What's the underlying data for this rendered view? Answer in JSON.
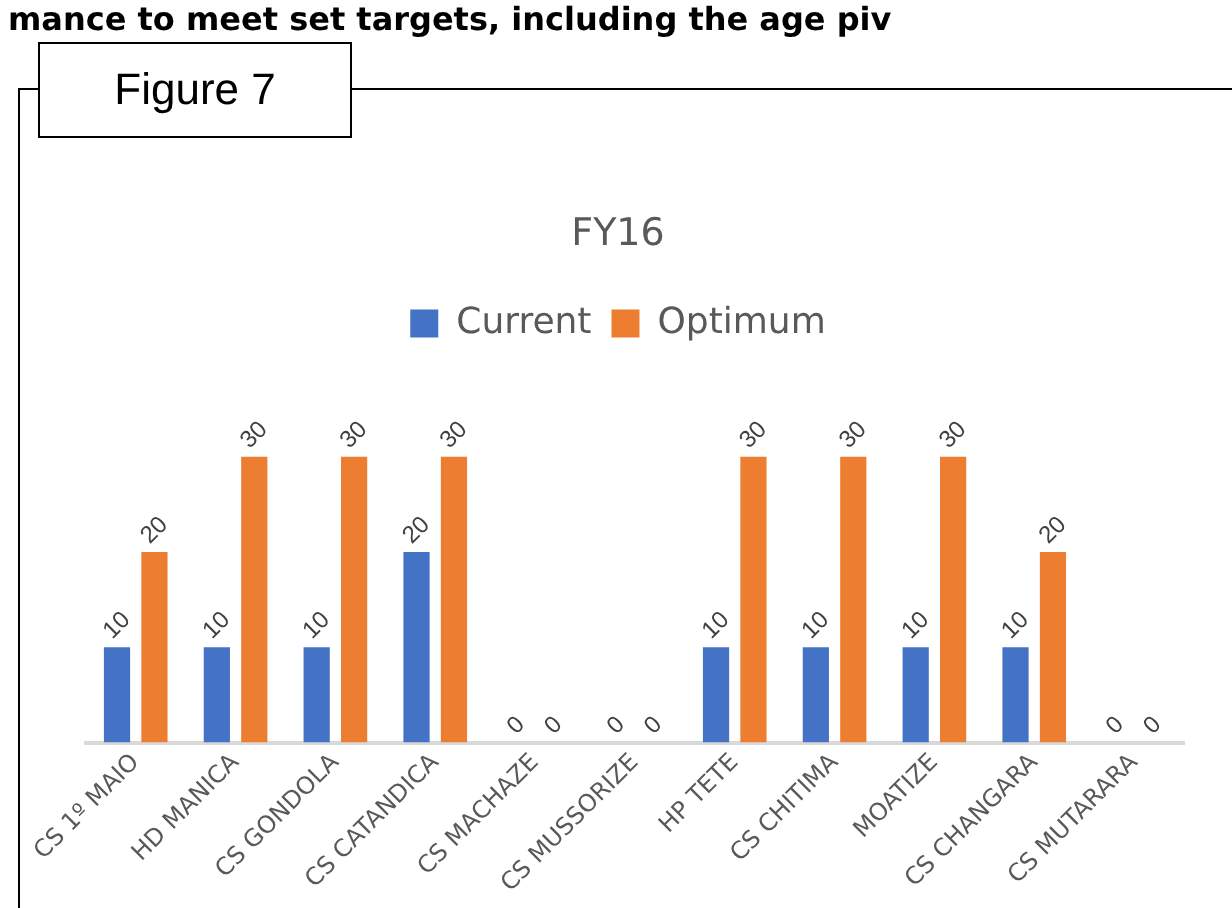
{
  "chart_data": {
    "type": "bar",
    "title": "FY16",
    "annotations": [
      "mance to meet set targets, including the age piv",
      "Figure 7"
    ],
    "categories": [
      "CS 1º MAIO",
      "HD MANICA",
      "CS GONDOLA",
      "CS CATANDICA",
      "CS MACHAZE",
      "CS MUSSORIZE",
      "HP TETE",
      "CS CHITIMA",
      "MOATIZE",
      "CS CHANGARA",
      "CS MUTARARA"
    ],
    "series": [
      {
        "name": "Current",
        "color": "#4472c4",
        "values": [
          10,
          10,
          10,
          20,
          0,
          0,
          10,
          10,
          10,
          10,
          0
        ]
      },
      {
        "name": "Optimum",
        "color": "#ed7d31",
        "values": [
          20,
          30,
          30,
          30,
          0,
          0,
          30,
          30,
          30,
          20,
          0
        ]
      }
    ],
    "data_labels": true,
    "legend": "top",
    "grid": false
  }
}
